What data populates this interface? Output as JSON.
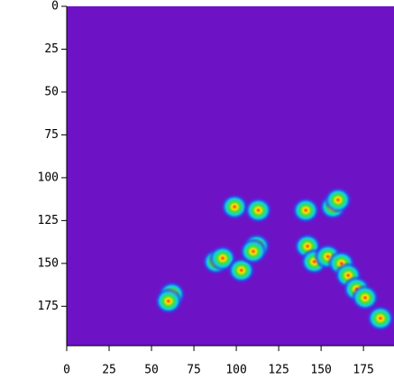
{
  "chart_data": {
    "type": "heatmap",
    "background_color": "#6e12c6",
    "xlim": [
      0,
      193
    ],
    "ylim": [
      0,
      198
    ],
    "y_inverted": true,
    "xticks": [
      0,
      25,
      50,
      75,
      100,
      125,
      150,
      175
    ],
    "yticks": [
      0,
      25,
      50,
      75,
      100,
      125,
      150,
      175
    ],
    "spots": {
      "x": [
        62,
        60,
        88,
        92,
        103,
        112,
        110,
        99,
        113,
        141,
        157,
        160,
        142,
        146,
        154,
        162,
        166,
        171,
        176,
        185
      ],
      "y": [
        168,
        172,
        149,
        147,
        154,
        140,
        143,
        117,
        119,
        119,
        117,
        113,
        140,
        149,
        146,
        150,
        157,
        165,
        170,
        182
      ]
    }
  }
}
